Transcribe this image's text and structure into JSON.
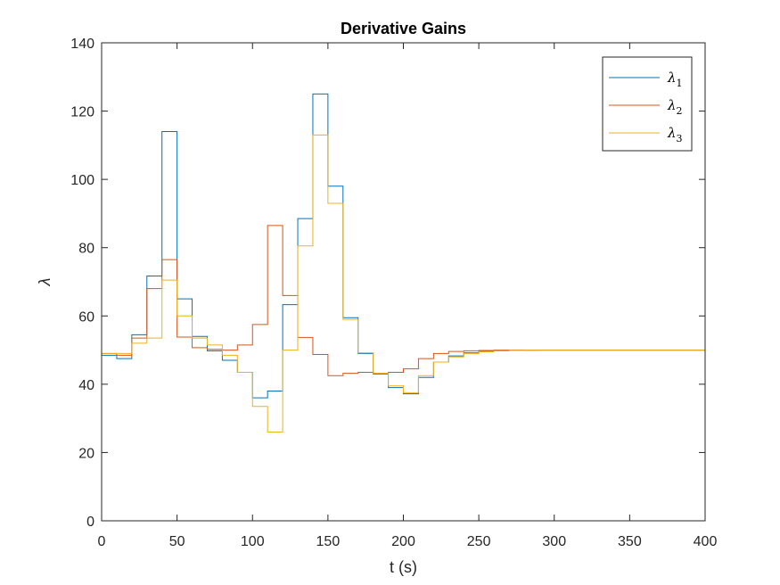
{
  "chart_data": {
    "type": "line",
    "title": "Derivative Gains",
    "xlabel": "t (s)",
    "ylabel": "λ",
    "xlim": [
      0,
      400
    ],
    "ylim": [
      0,
      140
    ],
    "xticks": [
      0,
      50,
      100,
      150,
      200,
      250,
      300,
      350,
      400
    ],
    "yticks": [
      0,
      20,
      40,
      60,
      80,
      100,
      120,
      140
    ],
    "grid": false,
    "legend_position": "top-right",
    "step": true,
    "x_edges": [
      0,
      10,
      20,
      30,
      40,
      50,
      60,
      70,
      80,
      90,
      100,
      110,
      120,
      130,
      140,
      150,
      160,
      170,
      180,
      190,
      200,
      210,
      220,
      230,
      240,
      250,
      260,
      270,
      280,
      290,
      300,
      310,
      320,
      330,
      340,
      350,
      360,
      370,
      380,
      390,
      400
    ],
    "series": [
      {
        "name": "λ",
        "subscript": "1",
        "color": "#0072BD",
        "start": 0,
        "values": [
          48.5,
          47.5,
          54.5,
          71.7,
          114,
          65,
          54,
          49.8,
          47,
          43.5,
          36,
          38,
          63.3,
          88.5,
          125,
          98,
          59.5,
          49,
          43,
          39,
          37.2,
          42,
          46.5,
          48.3,
          49.2,
          49.6,
          49.8,
          49.9,
          49.95,
          50,
          50,
          50,
          50,
          50,
          50,
          50,
          50,
          50,
          50,
          50
        ]
      },
      {
        "name": "λ",
        "subscript": "2",
        "color": "#D95319",
        "start": 0,
        "values": [
          49,
          48.5,
          53.5,
          68,
          76.5,
          53.8,
          50.7,
          50.2,
          50,
          51.5,
          57.5,
          86.5,
          66,
          53.7,
          48.7,
          42.5,
          43.2,
          43.5,
          43.2,
          43.5,
          44.5,
          47.5,
          49,
          49.6,
          49.8,
          49.9,
          50,
          50,
          50,
          50,
          50,
          50,
          50,
          50,
          50,
          50,
          50,
          50,
          50,
          50
        ]
      },
      {
        "name": "λ",
        "subscript": "3",
        "color": "#EDB120",
        "start": 0,
        "values": [
          49,
          49,
          52,
          53.5,
          70.5,
          60,
          53.5,
          51.5,
          48.5,
          43.5,
          33.5,
          26,
          50,
          80.5,
          113,
          93,
          59,
          49.2,
          43.2,
          39.5,
          37.5,
          42.5,
          46.5,
          48,
          49,
          49.5,
          49.8,
          49.9,
          50,
          50,
          50,
          50,
          50,
          50,
          50,
          50,
          50,
          50,
          50,
          50
        ]
      }
    ]
  }
}
